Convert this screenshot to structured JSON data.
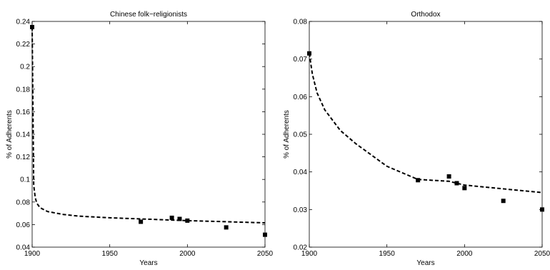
{
  "chart_data": [
    {
      "type": "scatter",
      "title": "Chinese folk−religionists",
      "xlabel": "Years",
      "ylabel": "% of Adherents",
      "xlim": [
        1900,
        2050
      ],
      "ylim": [
        0.04,
        0.24
      ],
      "xticks": [
        1900,
        1950,
        2000,
        2050
      ],
      "yticks": [
        "0.04",
        "0.06",
        "0.08",
        "0.1",
        "0.12",
        "0.14",
        "0.16",
        "0.18",
        "0.2",
        "0.22",
        "0.24"
      ],
      "grid": false,
      "series": [
        {
          "kind": "points",
          "marker": "square",
          "x": [
            1900,
            1970,
            1990,
            1995,
            2000,
            2025,
            2050
          ],
          "y": [
            0.235,
            0.0625,
            0.066,
            0.065,
            0.0635,
            0.0575,
            0.051
          ]
        },
        {
          "kind": "line",
          "style": "dashed",
          "x": [
            1900,
            1901,
            1902,
            1903,
            1905,
            1910,
            1920,
            1930,
            1950,
            1970,
            1990,
            2000,
            2025,
            2050
          ],
          "y": [
            0.235,
            0.095,
            0.084,
            0.079,
            0.075,
            0.0715,
            0.069,
            0.0675,
            0.066,
            0.065,
            0.064,
            0.0635,
            0.0625,
            0.0615
          ]
        }
      ]
    },
    {
      "type": "scatter",
      "title": "Orthodox",
      "xlabel": "Years",
      "ylabel": "% of Adherents",
      "xlim": [
        1900,
        2050
      ],
      "ylim": [
        0.02,
        0.08
      ],
      "xticks": [
        1900,
        1950,
        2000,
        2050
      ],
      "yticks": [
        "0.02",
        "0.03",
        "0.04",
        "0.05",
        "0.06",
        "0.07",
        "0.08"
      ],
      "grid": false,
      "series": [
        {
          "kind": "points",
          "marker": "square",
          "x": [
            1900,
            1970,
            1990,
            1995,
            2000,
            2025,
            2050
          ],
          "y": [
            0.0715,
            0.0378,
            0.0388,
            0.037,
            0.0357,
            0.0323,
            0.03
          ]
        },
        {
          "kind": "line",
          "style": "dashed",
          "x": [
            1900,
            1902,
            1905,
            1910,
            1920,
            1930,
            1950,
            1970,
            1990,
            2000,
            2025,
            2050
          ],
          "y": [
            0.0715,
            0.066,
            0.061,
            0.0565,
            0.051,
            0.0475,
            0.0415,
            0.038,
            0.0375,
            0.0365,
            0.0355,
            0.0345
          ]
        }
      ]
    }
  ]
}
